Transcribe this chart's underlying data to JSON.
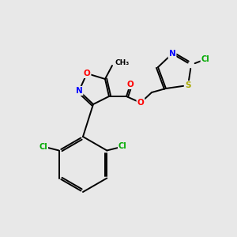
{
  "background_color": "#e8e8e8",
  "bond_color": "#000000",
  "atom_colors": {
    "O": "#ff0000",
    "N": "#0000ff",
    "S": "#aaaa00",
    "Cl": "#00aa00",
    "C": "#000000"
  },
  "figsize": [
    3.0,
    3.0
  ],
  "dpi": 100,
  "lw": 1.4
}
